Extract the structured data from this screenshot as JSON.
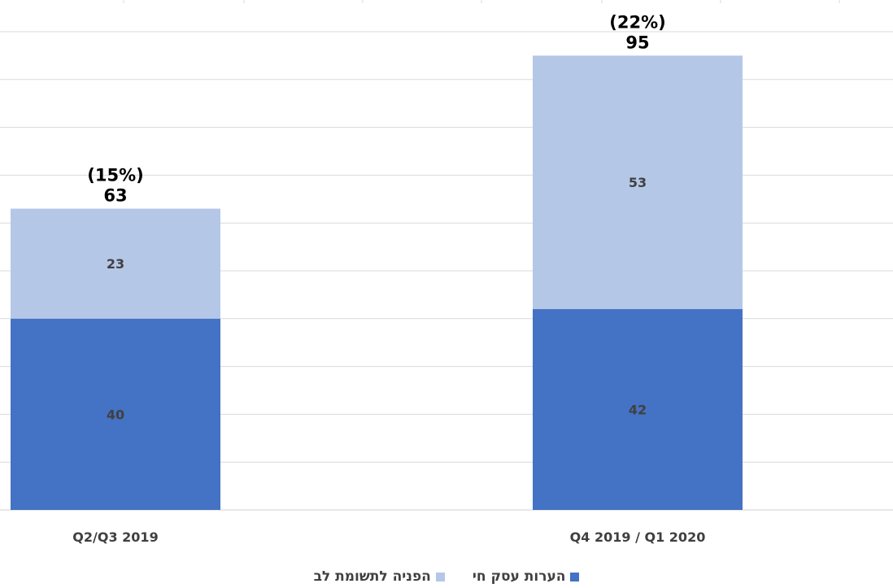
{
  "chart_data": {
    "type": "bar",
    "stacked": true,
    "categories": [
      "Q2/Q3 2019",
      "Q4 2019 / Q1 2020"
    ],
    "series": [
      {
        "name": "הערות עסק חי",
        "values": [
          40,
          42
        ],
        "color": "#4472c4"
      },
      {
        "name": "הפניה לתשומת לב",
        "values": [
          23,
          53
        ],
        "color": "#b4c7e7"
      }
    ],
    "totals": [
      "63",
      "95"
    ],
    "percentages": [
      "(15%)",
      "(22%)"
    ],
    "ylim": [
      0,
      105
    ],
    "grid": true,
    "legend_position": "bottom"
  }
}
